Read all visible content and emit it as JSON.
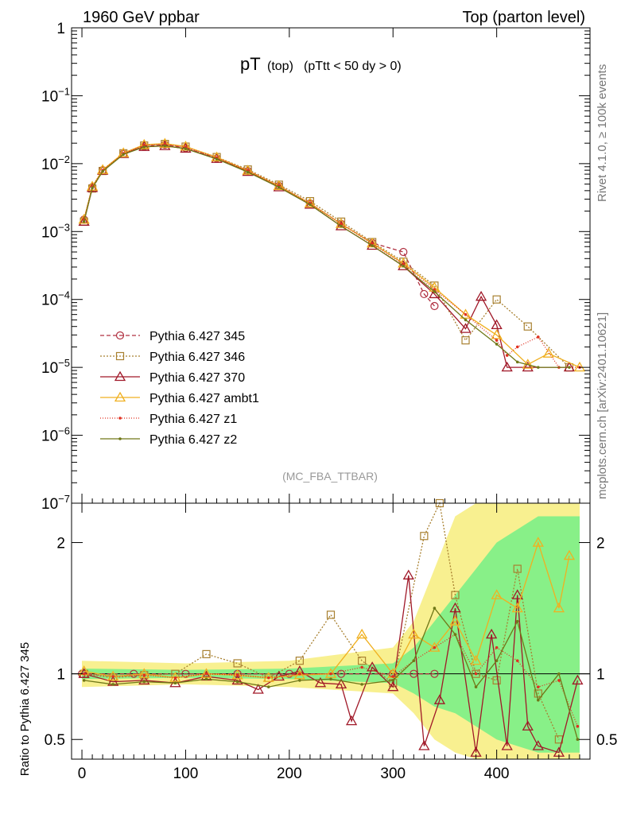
{
  "chart_data": {
    "type": "line",
    "header_left": "1960 GeV ppbar",
    "header_right": "Top (parton level)",
    "title_main": "pT",
    "title_sub": "(top)",
    "title_cut": "(pTtt < 50 dy > 0)",
    "watermark": "(MC_FBA_TTBAR)",
    "side_rivet": "Rivet 4.1.0, ≥ 100k events",
    "side_mcplots": "mcplots.cern.ch [arXiv:2401.10621]",
    "ratio_ylabel": "Ratio to Pythia 6.427 345",
    "xlim": [
      -10,
      490
    ],
    "main_ylim_log10": [
      -7,
      0
    ],
    "ratio_ylim": [
      0.35,
      2.3
    ],
    "main_ytick_labels": [
      {
        "exp": 0,
        "label": "1"
      },
      {
        "exp": -1,
        "label": "10",
        "sup": "−1"
      },
      {
        "exp": -2,
        "label": "10",
        "sup": "−2"
      },
      {
        "exp": -3,
        "label": "10",
        "sup": "−3"
      },
      {
        "exp": -4,
        "label": "10",
        "sup": "−4"
      },
      {
        "exp": -5,
        "label": "10",
        "sup": "−5"
      },
      {
        "exp": -6,
        "label": "10",
        "sup": "−6"
      },
      {
        "exp": -7,
        "label": "10",
        "sup": "−7"
      }
    ],
    "ratio_yticks": [
      {
        "value": 0.5,
        "label": "0.5"
      },
      {
        "value": 1,
        "label": "1"
      },
      {
        "value": 2,
        "label": "2"
      }
    ],
    "xticks": [
      {
        "value": 0,
        "label": "0"
      },
      {
        "value": 100,
        "label": "100"
      },
      {
        "value": 200,
        "label": "200"
      },
      {
        "value": 300,
        "label": "300"
      },
      {
        "value": 400,
        "label": "400"
      }
    ],
    "series": [
      {
        "name": "Pythia 6.427 345",
        "color": "#b03040",
        "dash": "5,3",
        "marker": "circle",
        "x": [
          2,
          10,
          20,
          40,
          60,
          80,
          100,
          130,
          160,
          190,
          220,
          250,
          280,
          310,
          330,
          340
        ],
        "values": [
          0.0015,
          0.0045,
          0.008,
          0.014,
          0.018,
          0.019,
          0.017,
          0.012,
          0.0078,
          0.0047,
          0.0026,
          0.0013,
          0.00068,
          0.0005,
          0.00012,
          8e-05
        ],
        "ratio_x": [
          0,
          50,
          100,
          150,
          200,
          250,
          300,
          320,
          340
        ],
        "ratio": [
          1,
          1,
          1,
          1,
          1,
          1,
          1,
          1,
          1
        ]
      },
      {
        "name": "Pythia 6.427 346",
        "color": "#a88030",
        "dash": "2,2",
        "marker": "square",
        "x": [
          2,
          10,
          20,
          40,
          60,
          80,
          100,
          130,
          160,
          190,
          220,
          250,
          280,
          310,
          340,
          370,
          400,
          430,
          470
        ],
        "values": [
          0.0014,
          0.0043,
          0.0078,
          0.0142,
          0.0185,
          0.0195,
          0.0178,
          0.0125,
          0.0082,
          0.0049,
          0.0028,
          0.0014,
          0.0007,
          0.00036,
          0.00016,
          2.5e-05,
          0.0001,
          4e-05,
          1e-05
        ],
        "ratio_x": [
          2,
          30,
          60,
          90,
          120,
          150,
          180,
          210,
          240,
          270,
          300,
          330,
          345,
          360,
          380,
          400,
          420,
          440,
          460
        ],
        "ratio": [
          1.0,
          0.97,
          0.99,
          1.0,
          1.15,
          1.08,
          0.97,
          1.1,
          1.45,
          1.1,
          0.93,
          2.05,
          2.3,
          1.6,
          1.0,
          0.95,
          1.8,
          0.85,
          0.5
        ]
      },
      {
        "name": "Pythia 6.427 370",
        "color": "#a01828",
        "dash": "",
        "marker": "triangle",
        "x": [
          2,
          10,
          20,
          40,
          60,
          80,
          100,
          130,
          160,
          190,
          220,
          250,
          280,
          310,
          340,
          370,
          385,
          400,
          410,
          430,
          470
        ],
        "values": [
          0.0014,
          0.0044,
          0.0079,
          0.0139,
          0.0177,
          0.0182,
          0.0167,
          0.0118,
          0.0076,
          0.0045,
          0.0025,
          0.0012,
          0.00062,
          0.00031,
          0.00012,
          3.7e-05,
          0.00011,
          4.2e-05,
          1e-05,
          1e-05,
          1e-05
        ],
        "ratio_x": [
          2,
          30,
          60,
          90,
          120,
          150,
          170,
          190,
          210,
          230,
          250,
          260,
          280,
          300,
          315,
          330,
          345,
          360,
          380,
          395,
          410,
          420,
          430,
          440,
          460,
          478
        ],
        "ratio": [
          1.0,
          0.94,
          0.95,
          0.93,
          0.98,
          0.95,
          0.88,
          0.98,
          1.02,
          0.93,
          0.92,
          0.64,
          1.05,
          0.9,
          1.75,
          0.45,
          0.8,
          1.5,
          0.4,
          1.3,
          0.45,
          1.6,
          0.6,
          0.45,
          0.4,
          0.95
        ]
      },
      {
        "name": "Pythia 6.427 ambt1",
        "color": "#f0b020",
        "dash": "",
        "marker": "triangle",
        "x": [
          2,
          10,
          20,
          40,
          60,
          80,
          100,
          130,
          160,
          190,
          220,
          250,
          280,
          310,
          340,
          370,
          400,
          430,
          450,
          480
        ],
        "values": [
          0.0015,
          0.0046,
          0.0081,
          0.0143,
          0.019,
          0.0197,
          0.0179,
          0.0124,
          0.0079,
          0.0047,
          0.0026,
          0.0013,
          0.00067,
          0.00034,
          0.00015,
          6e-05,
          3e-05,
          1.1e-05,
          1.6e-05,
          1e-05
        ],
        "ratio_x": [
          2,
          30,
          60,
          90,
          120,
          150,
          180,
          210,
          240,
          270,
          300,
          320,
          340,
          360,
          380,
          400,
          420,
          440,
          460,
          470
        ],
        "ratio": [
          1.02,
          0.98,
          1.0,
          0.97,
          1.0,
          0.99,
          0.97,
          0.99,
          1.0,
          1.3,
          1.0,
          1.3,
          1.2,
          1.4,
          1.1,
          1.6,
          1.5,
          2.0,
          1.5,
          1.9
        ]
      },
      {
        "name": "Pythia 6.427 z1",
        "color": "#e03020",
        "dash": "1,2",
        "marker": "dot",
        "x": [
          2,
          10,
          20,
          40,
          60,
          80,
          100,
          130,
          160,
          190,
          220,
          250,
          280,
          310,
          340,
          370,
          400,
          410,
          420,
          440,
          460,
          480
        ],
        "values": [
          0.0015,
          0.0046,
          0.008,
          0.0141,
          0.0186,
          0.0193,
          0.0175,
          0.0122,
          0.0079,
          0.0047,
          0.0026,
          0.0013,
          0.00066,
          0.00033,
          0.00014,
          6e-05,
          2.5e-05,
          1.5e-05,
          2e-05,
          2.8e-05,
          1e-05,
          1e-05
        ],
        "ratio_x": [
          2,
          30,
          60,
          90,
          120,
          150,
          180,
          210,
          240,
          270,
          300,
          320,
          340,
          360,
          380,
          400,
          420,
          440,
          460,
          478
        ],
        "ratio": [
          1.0,
          0.98,
          0.99,
          0.97,
          1.0,
          0.99,
          0.97,
          1.0,
          1.0,
          1.05,
          0.98,
          1.1,
          1.2,
          1.3,
          1.0,
          1.2,
          1.1,
          0.9,
          0.95,
          0.6
        ]
      },
      {
        "name": "Pythia 6.427 z2",
        "color": "#707818",
        "dash": "",
        "marker": "dot",
        "x": [
          2,
          10,
          20,
          40,
          60,
          80,
          100,
          130,
          160,
          190,
          220,
          250,
          280,
          310,
          340,
          370,
          400,
          420,
          440,
          470
        ],
        "values": [
          0.0014,
          0.0044,
          0.0077,
          0.0137,
          0.0176,
          0.0183,
          0.0166,
          0.0117,
          0.0075,
          0.0045,
          0.0025,
          0.0012,
          0.00062,
          0.00031,
          0.00013,
          5e-05,
          2.2e-05,
          1.2e-05,
          1e-05,
          1e-05
        ],
        "ratio_x": [
          2,
          30,
          60,
          90,
          120,
          150,
          180,
          210,
          240,
          270,
          300,
          320,
          340,
          360,
          380,
          400,
          420,
          440,
          460,
          478
        ],
        "ratio": [
          0.95,
          0.92,
          0.94,
          0.93,
          0.96,
          0.94,
          0.9,
          0.95,
          0.96,
          0.92,
          0.95,
          1.1,
          1.5,
          1.3,
          0.9,
          1.1,
          1.4,
          0.8,
          1.0,
          0.5
        ]
      }
    ],
    "ratio_bands": [
      {
        "name": "stat",
        "color": "#88f088",
        "x": [
          0,
          100,
          200,
          300,
          320,
          340,
          360,
          380,
          400,
          420,
          440,
          460,
          480
        ],
        "lo": [
          0.96,
          0.97,
          0.96,
          0.93,
          0.85,
          0.75,
          0.7,
          0.6,
          0.5,
          0.45,
          0.4,
          0.4,
          0.4
        ],
        "hi": [
          1.04,
          1.03,
          1.04,
          1.08,
          1.2,
          1.4,
          1.6,
          1.8,
          2.0,
          2.1,
          2.2,
          2.2,
          2.2
        ]
      },
      {
        "name": "syst",
        "color": "#f8f090",
        "x": [
          0,
          100,
          200,
          300,
          320,
          340,
          360,
          380,
          400,
          420,
          440,
          460,
          480
        ],
        "lo": [
          0.9,
          0.92,
          0.9,
          0.85,
          0.7,
          0.5,
          0.4,
          0.35,
          0.35,
          0.35,
          0.35,
          0.35,
          0.35
        ],
        "hi": [
          1.1,
          1.08,
          1.1,
          1.2,
          1.4,
          1.8,
          2.2,
          2.3,
          2.3,
          2.3,
          2.3,
          2.3,
          2.3
        ]
      }
    ]
  }
}
